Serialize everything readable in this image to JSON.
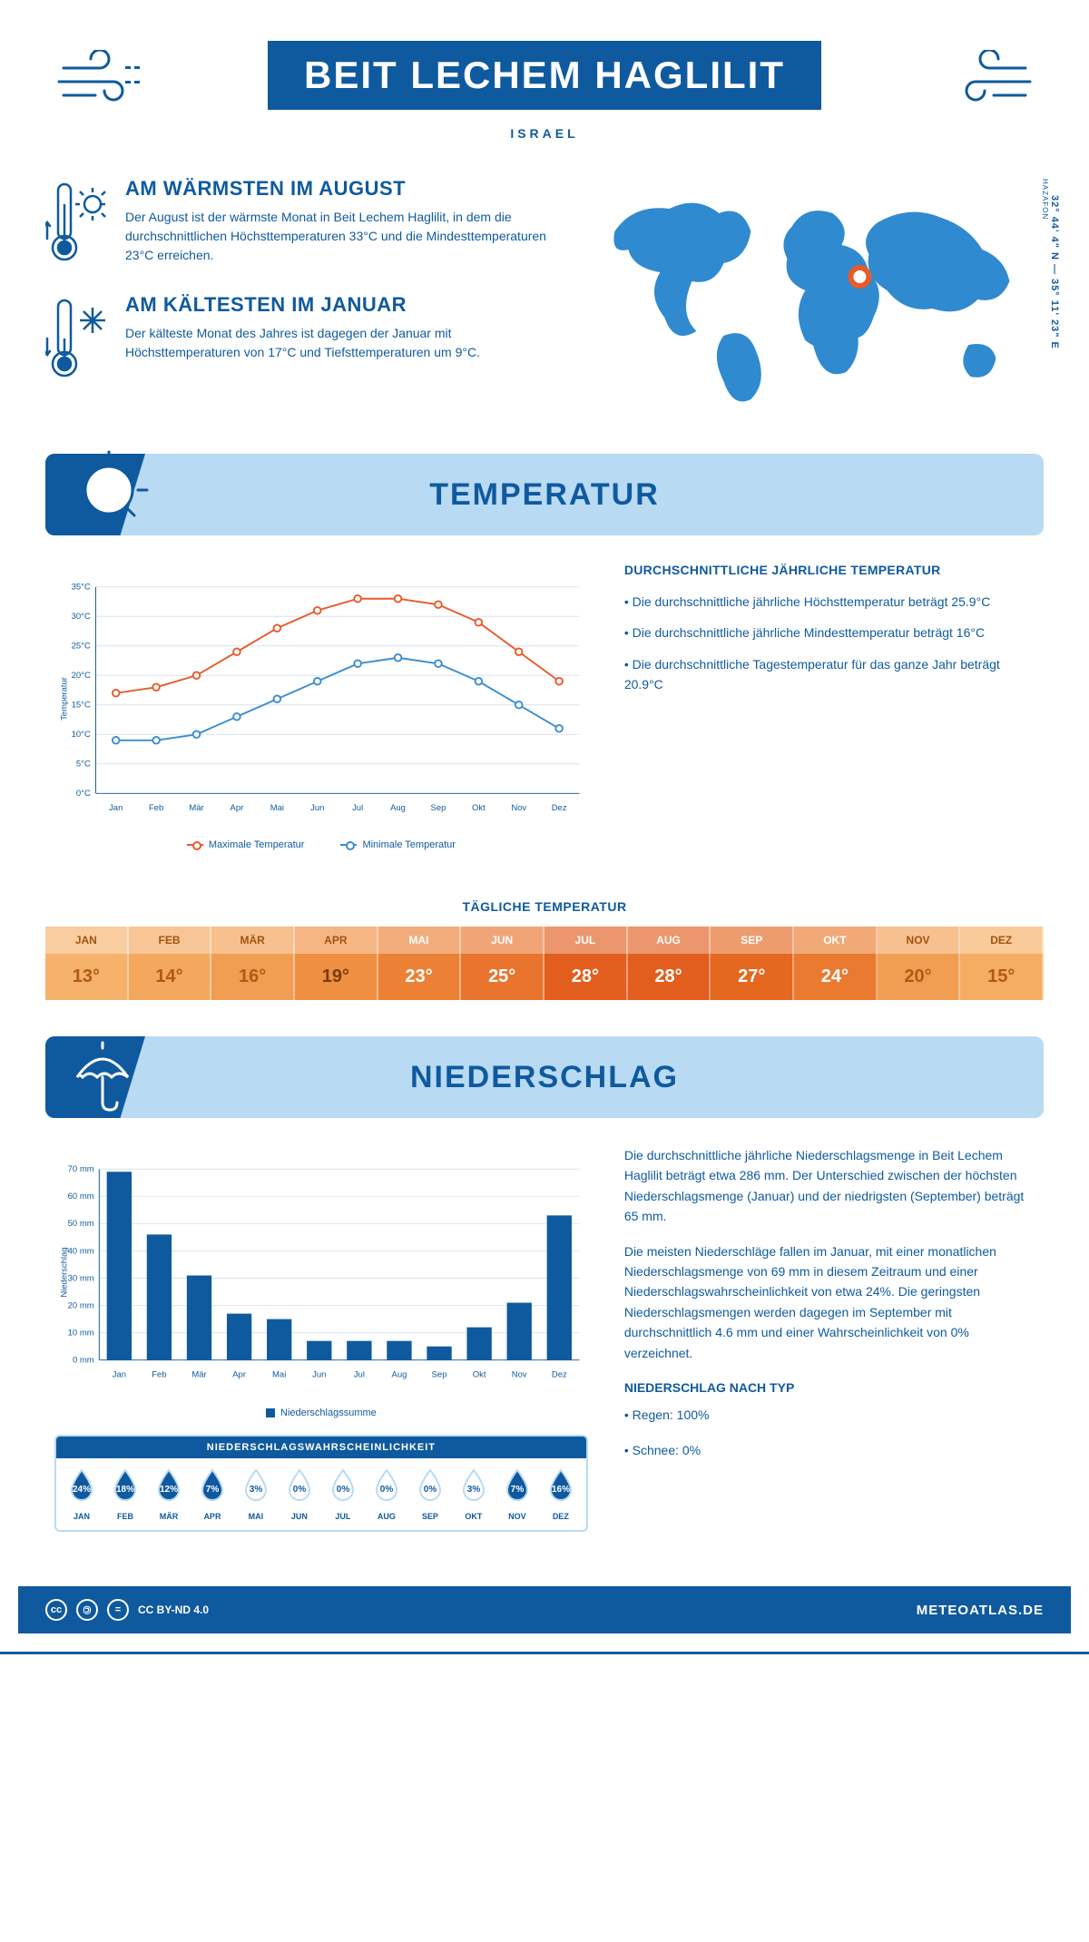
{
  "colors": {
    "primary": "#0f5a9e",
    "light": "#b9daf3",
    "lineHigh": "#e85a2a",
    "lineLow": "#3a8dd0",
    "grid": "#d9e4ef",
    "white": "#ffffff"
  },
  "header": {
    "title": "BEIT LECHEM HAGLILIT",
    "subtitle": "ISRAEL"
  },
  "intro": {
    "warm": {
      "heading": "AM WÄRMSTEN IM AUGUST",
      "text": "Der August ist der wärmste Monat in Beit Lechem Haglilit, in dem die durchschnittlichen Höchsttemperaturen 33°C und die Mindesttemperaturen 23°C erreichen."
    },
    "cold": {
      "heading": "AM KÄLTESTEN IM JANUAR",
      "text": "Der kälteste Monat des Jahres ist dagegen der Januar mit Höchsttemperaturen von 17°C und Tiefsttemperaturen um 9°C."
    },
    "coords": "32° 44' 4\" N — 35° 11' 23\" E",
    "region": "HAZAFON"
  },
  "sections": {
    "temperature": "TEMPERATUR",
    "precipitation": "NIEDERSCHLAG"
  },
  "tempChart": {
    "type": "line",
    "months": [
      "Jan",
      "Feb",
      "Mär",
      "Apr",
      "Mai",
      "Jun",
      "Jul",
      "Aug",
      "Sep",
      "Okt",
      "Nov",
      "Dez"
    ],
    "high": [
      17,
      18,
      20,
      24,
      28,
      31,
      33,
      33,
      32,
      29,
      24,
      19
    ],
    "low": [
      9,
      9,
      10,
      13,
      16,
      19,
      22,
      23,
      22,
      19,
      15,
      11
    ],
    "ylim": [
      0,
      35
    ],
    "ytick_step": 5,
    "ylabel": "Temperatur",
    "legend_high": "Maximale Temperatur",
    "legend_low": "Minimale Temperatur",
    "line_width": 2,
    "marker_radius": 4,
    "high_color": "#e85a2a",
    "low_color": "#3a8dd0",
    "grid_color": "#d9e4ef",
    "axis_fontsize": 10
  },
  "tempInfo": {
    "heading": "DURCHSCHNITTLICHE JÄHRLICHE TEMPERATUR",
    "b1": "• Die durchschnittliche jährliche Höchsttemperatur beträgt 25.9°C",
    "b2": "• Die durchschnittliche jährliche Mindesttemperatur beträgt 16°C",
    "b3": "• Die durchschnittliche Tagestemperatur für das ganze Jahr beträgt 20.9°C"
  },
  "dailyTemp": {
    "heading": "TÄGLICHE TEMPERATUR",
    "months": [
      "JAN",
      "FEB",
      "MÄR",
      "APR",
      "MAI",
      "JUN",
      "JUL",
      "AUG",
      "SEP",
      "OKT",
      "NOV",
      "DEZ"
    ],
    "values": [
      "13°",
      "14°",
      "16°",
      "19°",
      "23°",
      "25°",
      "28°",
      "28°",
      "27°",
      "24°",
      "20°",
      "15°"
    ],
    "cell_colors": [
      "#f6b26b",
      "#f4a85e",
      "#f29e52",
      "#ef8f42",
      "#ec8136",
      "#e9742d",
      "#e25e1e",
      "#e25e1e",
      "#e4681f",
      "#ea7a30",
      "#f29e52",
      "#f5ad63"
    ],
    "text_colors": [
      "#b05a14",
      "#b05a14",
      "#b05a14",
      "#7a3a0c",
      "#ffffff",
      "#ffffff",
      "#ffffff",
      "#ffffff",
      "#ffffff",
      "#ffffff",
      "#b05a14",
      "#b05a14"
    ],
    "label_bg_lighten": 0.35
  },
  "precipChart": {
    "type": "bar",
    "months": [
      "Jan",
      "Feb",
      "Mär",
      "Apr",
      "Mai",
      "Jun",
      "Jul",
      "Aug",
      "Sep",
      "Okt",
      "Nov",
      "Dez"
    ],
    "values": [
      69,
      46,
      31,
      17,
      15,
      7,
      7,
      7,
      5,
      12,
      21,
      53
    ],
    "ylim": [
      0,
      70
    ],
    "ytick_step": 10,
    "ylabel": "Niederschlag",
    "y_unit": "mm",
    "bar_color": "#0f5a9e",
    "grid_color": "#d9e4ef",
    "legend": "Niederschlagssumme",
    "bar_width": 0.62,
    "axis_fontsize": 10
  },
  "precipText": {
    "p1": "Die durchschnittliche jährliche Niederschlagsmenge in Beit Lechem Haglilit beträgt etwa 286 mm. Der Unterschied zwischen der höchsten Niederschlagsmenge (Januar) und der niedrigsten (September) beträgt 65 mm.",
    "p2": "Die meisten Niederschläge fallen im Januar, mit einer monatlichen Niederschlagsmenge von 69 mm in diesem Zeitraum und einer Niederschlagswahrscheinlichkeit von etwa 24%. Die geringsten Niederschlagsmengen werden dagegen im September mit durchschnittlich 4.6 mm und einer Wahrscheinlichkeit von 0% verzeichnet.",
    "typeHeading": "NIEDERSCHLAG NACH TYP",
    "type1": "• Regen: 100%",
    "type2": "• Schnee: 0%"
  },
  "prob": {
    "heading": "NIEDERSCHLAGSWAHRSCHEINLICHKEIT",
    "months": [
      "JAN",
      "FEB",
      "MÄR",
      "APR",
      "MAI",
      "JUN",
      "JUL",
      "AUG",
      "SEP",
      "OKT",
      "NOV",
      "DEZ"
    ],
    "values": [
      "24%",
      "18%",
      "12%",
      "7%",
      "3%",
      "0%",
      "0%",
      "0%",
      "0%",
      "3%",
      "7%",
      "16%"
    ],
    "filled": [
      true,
      true,
      true,
      true,
      false,
      false,
      false,
      false,
      false,
      false,
      true,
      true
    ],
    "drop_fill": "#0f5a9e",
    "drop_outline": "#b9daf3"
  },
  "footer": {
    "license": "CC BY-ND 4.0",
    "site": "METEOATLAS.DE"
  }
}
